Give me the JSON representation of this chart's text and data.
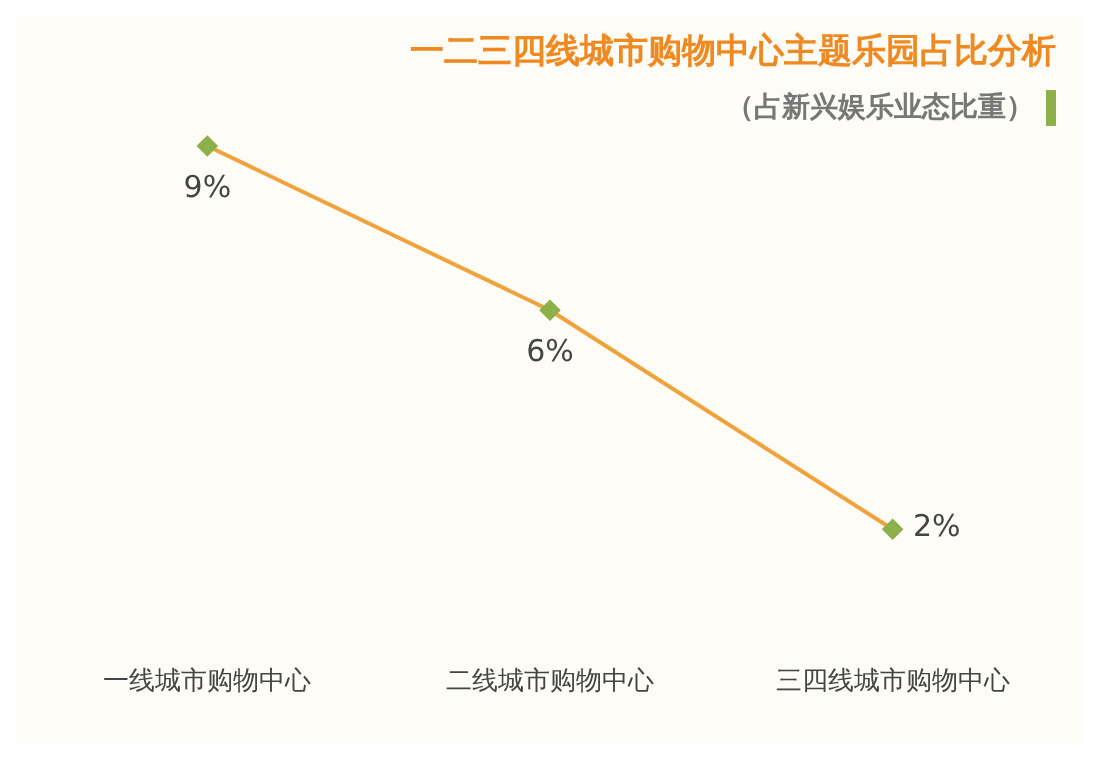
{
  "chart_data": {
    "type": "line",
    "title": "一二三四线城市购物中心主题乐园占比分析",
    "subtitle": "（占新兴娱乐业态比重）",
    "categories": [
      "一线城市购物中心",
      "二线城市购物中心",
      "三四线城市购物中心"
    ],
    "series": [
      {
        "color": "#f0a23c",
        "values": [
          9,
          6,
          2
        ],
        "value_labels": [
          "9%",
          "6%",
          "2%"
        ]
      }
    ],
    "marker": "diamond",
    "grid": false,
    "legend": false
  }
}
